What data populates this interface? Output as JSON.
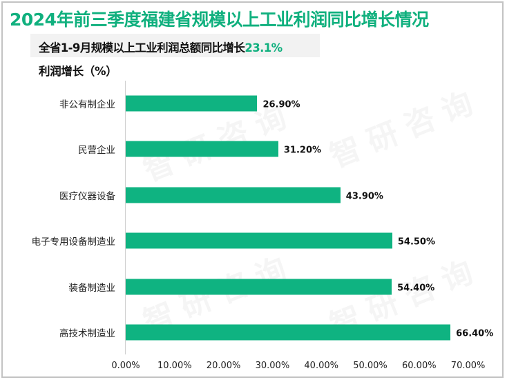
{
  "title": "2024年前三季度福建省规模以上工业利润同比增长情况",
  "subtitle": {
    "prefix": "全省1-9月规模以上工业利润总额同比增长",
    "highlight": "23.1%"
  },
  "watermark": "智研咨询",
  "colors": {
    "accent": "#10b07e",
    "bar": "#0fb381",
    "border": "#c3c3c3",
    "subtitle_bg": "#f2f2f2"
  },
  "chart_data": {
    "type": "bar",
    "orientation": "horizontal",
    "title": "2024年前三季度福建省规模以上工业利润同比增长情况",
    "subtitle": "全省1-9月规模以上工业利润总额同比增长23.1%",
    "ylabel": "利润增长（%）",
    "xlabel": "",
    "categories": [
      "非公有制企业",
      "民营企业",
      "医疗仪器设备",
      "电子专用设备制造业",
      "装备制造业",
      "高技术制造业"
    ],
    "values": [
      26.9,
      31.2,
      43.9,
      54.5,
      54.4,
      66.4
    ],
    "value_labels": [
      "26.90%",
      "31.20%",
      "43.90%",
      "54.50%",
      "54.40%",
      "66.40%"
    ],
    "xlim": [
      0,
      70
    ],
    "x_ticks": [
      "0.00%",
      "10.00%",
      "20.00%",
      "30.00%",
      "40.00%",
      "50.00%",
      "60.00%",
      "70.00%"
    ],
    "grid": false,
    "legend": null
  },
  "labels": {
    "ylabel": "利润增长（%）"
  }
}
